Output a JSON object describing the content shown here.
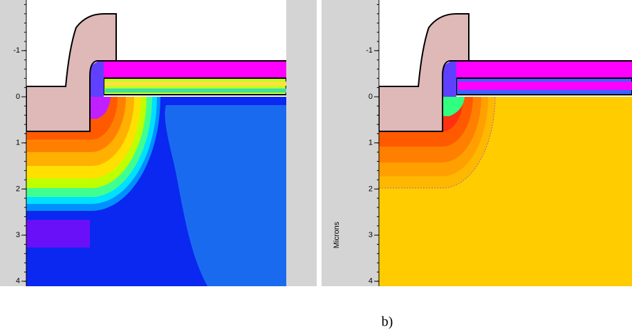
{
  "panels": [
    {
      "yticks": [
        -1,
        0,
        1,
        2,
        3,
        4
      ]
    },
    {
      "yticks": [
        -1,
        0,
        1,
        2,
        3,
        4
      ],
      "axis_label": "Microns"
    }
  ],
  "caption": "b)"
}
